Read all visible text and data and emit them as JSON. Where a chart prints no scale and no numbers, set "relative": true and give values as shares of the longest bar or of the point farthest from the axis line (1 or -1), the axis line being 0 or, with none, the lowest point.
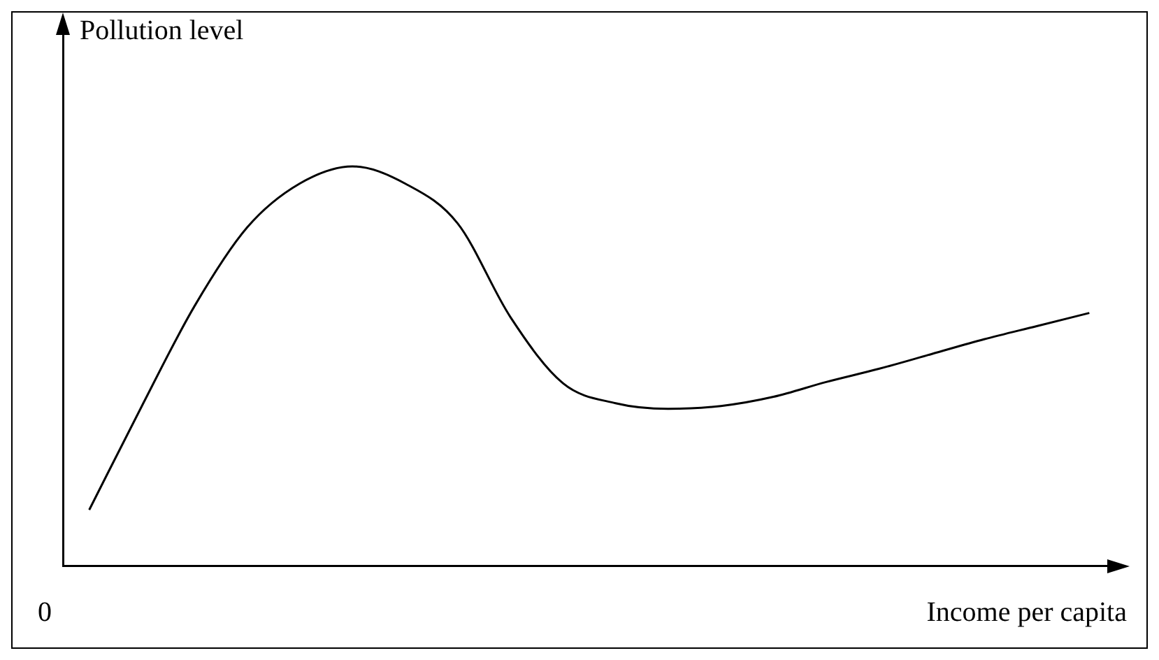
{
  "chart_data": {
    "type": "line",
    "relative": true,
    "xlabel": "Income per capita",
    "ylabel": "Pollution level",
    "annotations": [
      "0"
    ],
    "categories": [
      null,
      null,
      null,
      null,
      null,
      null,
      null,
      null,
      null,
      null,
      null,
      null,
      null,
      null,
      null,
      null,
      null,
      null,
      null,
      null
    ],
    "series": [
      {
        "color": "#000000",
        "values": [
          0.14,
          0.4,
          0.65,
          0.847,
          0.957,
          1,
          0.957,
          0.857,
          0.623,
          0.457,
          0.407,
          0.393,
          0.4,
          0.423,
          0.46,
          0.493,
          0.53,
          0.567,
          0.6,
          0.633
        ]
      }
    ],
    "grid": false,
    "legend": false,
    "marker": "none",
    "line_style": "solid"
  }
}
